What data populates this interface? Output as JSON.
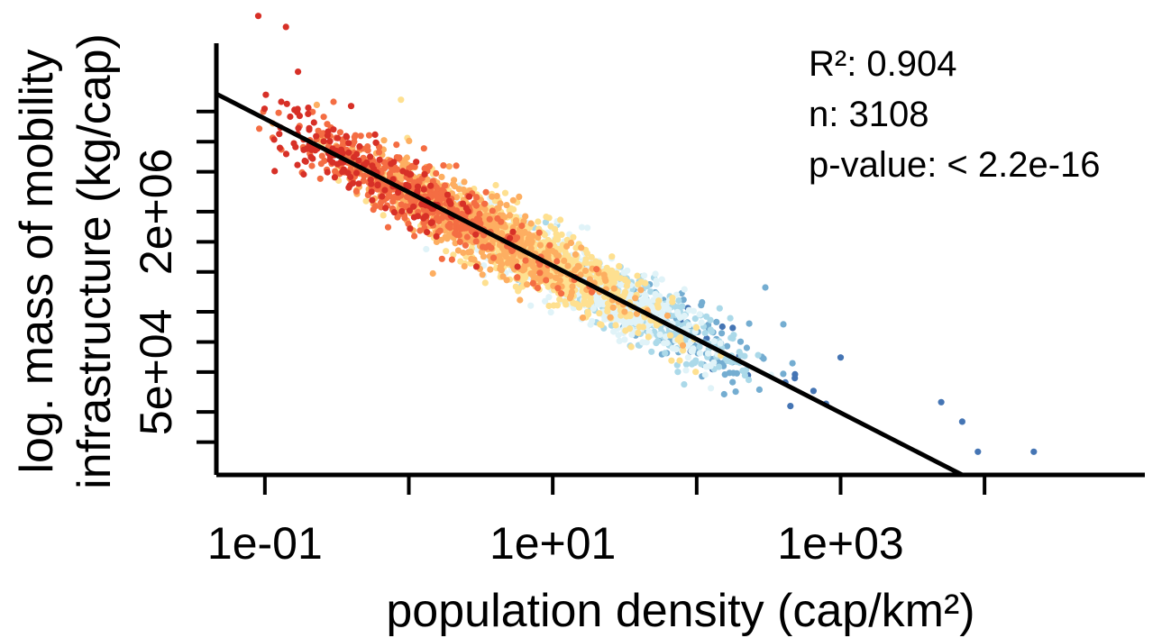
{
  "chart_data": {
    "type": "scatter",
    "title": "",
    "xlabel": "population density (cap/km²)",
    "ylabel_line1": "log. mass of mobility",
    "ylabel_line2": "infrastructure (kg/cap)",
    "x_scale": "log10",
    "y_scale": "log10",
    "xlim": [
      0.046,
      130000
    ],
    "ylim": [
      4700,
      260000000
    ],
    "x_tick_values": [
      0.1,
      1,
      10,
      100,
      1000,
      10000
    ],
    "x_tick_labels": [
      {
        "value": 0.1,
        "label": "1e-01"
      },
      {
        "value": 10,
        "label": "1e+01"
      },
      {
        "value": 1000,
        "label": "1e+03"
      }
    ],
    "y_tick_values": [
      10000,
      20000,
      50000,
      100000,
      200000,
      500000,
      1000000,
      2000000,
      5000000,
      10000000,
      20000000
    ],
    "y_tick_labels": [
      {
        "value": 50000,
        "label": "5e+04"
      },
      {
        "value": 2000000,
        "label": "2e+06"
      }
    ],
    "fit_line": {
      "x": [
        0.046,
        7000
      ],
      "y": [
        30000000,
        4700
      ]
    },
    "annotations": [
      "R²: 0.904",
      "n: 3108",
      "p-value: < 2.2e-16"
    ],
    "n_points": 3108,
    "color_scale": [
      "#d73027",
      "#f46d43",
      "#fdae61",
      "#fee090",
      "#e0f3f8",
      "#abd9e9",
      "#74add1",
      "#4575b4"
    ],
    "grid": false,
    "legend": "none",
    "notable_points": [
      {
        "x": 0.09,
        "y": 180000000
      },
      {
        "x": 0.14,
        "y": 140000000
      },
      {
        "x": 0.17,
        "y": 50000000
      },
      {
        "x": 0.13,
        "y": 25000000
      },
      {
        "x": 0.3,
        "y": 25000000
      },
      {
        "x": 0.35,
        "y": 10000000
      },
      {
        "x": 1.2,
        "y": 3000000
      },
      {
        "x": 3,
        "y": 1500000
      },
      {
        "x": 40,
        "y": 350000
      },
      {
        "x": 300,
        "y": 350000
      },
      {
        "x": 400,
        "y": 150000
      },
      {
        "x": 1000,
        "y": 70000
      },
      {
        "x": 5000,
        "y": 25000
      },
      {
        "x": 7000,
        "y": 16000
      },
      {
        "x": 9000,
        "y": 8000
      },
      {
        "x": 22000,
        "y": 8000
      }
    ]
  }
}
